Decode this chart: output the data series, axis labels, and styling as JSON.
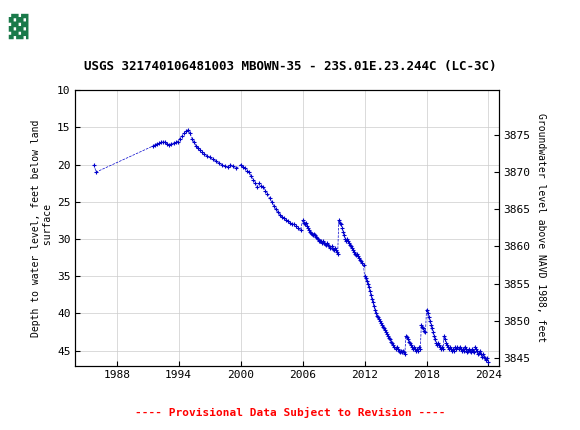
{
  "title": "USGS 321740106481003 MBOWN-35 - 23S.01E.23.244C (LC-3C)",
  "ylabel_left": "Depth to water level, feet below land\n surface",
  "ylabel_right": "Groundwater level above NAVD 1988, feet",
  "provisional_text": "---- Provisional Data Subject to Revision ----",
  "ylim_left": [
    47,
    10
  ],
  "ylim_right": [
    3845,
    3878
  ],
  "xlim": [
    1984,
    2025
  ],
  "yticks_left": [
    10,
    15,
    20,
    25,
    30,
    35,
    40,
    45
  ],
  "yticks_right": [
    3845,
    3850,
    3855,
    3860,
    3865,
    3870,
    3875
  ],
  "xticks": [
    1988,
    1994,
    2000,
    2006,
    2012,
    2018,
    2024
  ],
  "data_color": "#0000CC",
  "grid_color": "#CCCCCC",
  "header_color": "#1a7a4a",
  "provisional_color": "#FF0000",
  "background_color": "#ffffff",
  "land_surface_elevation": 3891.0,
  "data_points": [
    [
      1985.8,
      20.0
    ],
    [
      1986.0,
      21.0
    ],
    [
      1991.5,
      17.5
    ],
    [
      1991.7,
      17.3
    ],
    [
      1991.9,
      17.2
    ],
    [
      1992.1,
      17.1
    ],
    [
      1992.3,
      17.0
    ],
    [
      1992.5,
      16.9
    ],
    [
      1992.7,
      17.0
    ],
    [
      1992.9,
      17.2
    ],
    [
      1993.1,
      17.3
    ],
    [
      1993.3,
      17.2
    ],
    [
      1993.5,
      17.1
    ],
    [
      1993.7,
      17.0
    ],
    [
      1993.9,
      16.9
    ],
    [
      1994.1,
      16.5
    ],
    [
      1994.3,
      16.2
    ],
    [
      1994.5,
      15.8
    ],
    [
      1994.7,
      15.5
    ],
    [
      1994.9,
      15.3
    ],
    [
      1995.1,
      15.8
    ],
    [
      1995.3,
      16.5
    ],
    [
      1995.5,
      17.0
    ],
    [
      1995.7,
      17.5
    ],
    [
      1995.9,
      17.8
    ],
    [
      1996.1,
      18.0
    ],
    [
      1996.3,
      18.3
    ],
    [
      1996.5,
      18.5
    ],
    [
      1996.7,
      18.8
    ],
    [
      1997.0,
      19.0
    ],
    [
      1997.3,
      19.3
    ],
    [
      1997.6,
      19.5
    ],
    [
      1997.9,
      19.8
    ],
    [
      1998.2,
      20.0
    ],
    [
      1998.5,
      20.2
    ],
    [
      1998.8,
      20.3
    ],
    [
      1999.0,
      20.0
    ],
    [
      1999.3,
      20.2
    ],
    [
      1999.6,
      20.5
    ],
    [
      2000.0,
      20.0
    ],
    [
      2000.2,
      20.3
    ],
    [
      2000.4,
      20.5
    ],
    [
      2000.6,
      20.8
    ],
    [
      2000.8,
      21.0
    ],
    [
      2001.0,
      21.5
    ],
    [
      2001.2,
      22.0
    ],
    [
      2001.4,
      22.5
    ],
    [
      2001.6,
      23.0
    ],
    [
      2001.8,
      22.5
    ],
    [
      2002.0,
      22.8
    ],
    [
      2002.2,
      23.0
    ],
    [
      2002.4,
      23.5
    ],
    [
      2002.6,
      24.0
    ],
    [
      2002.8,
      24.5
    ],
    [
      2003.0,
      25.0
    ],
    [
      2003.2,
      25.5
    ],
    [
      2003.4,
      26.0
    ],
    [
      2003.6,
      26.3
    ],
    [
      2003.8,
      26.7
    ],
    [
      2004.0,
      27.0
    ],
    [
      2004.2,
      27.2
    ],
    [
      2004.4,
      27.4
    ],
    [
      2004.6,
      27.6
    ],
    [
      2004.8,
      27.8
    ],
    [
      2005.0,
      28.0
    ],
    [
      2005.2,
      28.0
    ],
    [
      2005.4,
      28.2
    ],
    [
      2005.6,
      28.5
    ],
    [
      2005.8,
      28.8
    ],
    [
      2006.0,
      27.5
    ],
    [
      2006.1,
      27.8
    ],
    [
      2006.2,
      28.0
    ],
    [
      2006.3,
      27.8
    ],
    [
      2006.4,
      28.2
    ],
    [
      2006.5,
      28.5
    ],
    [
      2006.6,
      28.8
    ],
    [
      2006.7,
      29.0
    ],
    [
      2006.8,
      29.2
    ],
    [
      2006.9,
      29.3
    ],
    [
      2007.0,
      29.5
    ],
    [
      2007.1,
      29.3
    ],
    [
      2007.2,
      29.5
    ],
    [
      2007.3,
      29.7
    ],
    [
      2007.4,
      29.8
    ],
    [
      2007.5,
      30.0
    ],
    [
      2007.6,
      30.2
    ],
    [
      2007.7,
      30.3
    ],
    [
      2007.8,
      30.2
    ],
    [
      2007.9,
      30.5
    ],
    [
      2008.0,
      30.3
    ],
    [
      2008.1,
      30.5
    ],
    [
      2008.2,
      30.7
    ],
    [
      2008.3,
      30.8
    ],
    [
      2008.4,
      30.5
    ],
    [
      2008.5,
      30.8
    ],
    [
      2008.6,
      31.0
    ],
    [
      2008.7,
      31.2
    ],
    [
      2008.8,
      31.0
    ],
    [
      2008.9,
      31.3
    ],
    [
      2009.0,
      31.5
    ],
    [
      2009.1,
      31.2
    ],
    [
      2009.2,
      31.5
    ],
    [
      2009.3,
      31.8
    ],
    [
      2009.4,
      32.0
    ],
    [
      2009.5,
      27.5
    ],
    [
      2009.6,
      27.8
    ],
    [
      2009.7,
      28.0
    ],
    [
      2009.8,
      28.5
    ],
    [
      2009.9,
      29.0
    ],
    [
      2010.0,
      29.5
    ],
    [
      2010.1,
      30.0
    ],
    [
      2010.2,
      30.2
    ],
    [
      2010.3,
      30.0
    ],
    [
      2010.4,
      30.3
    ],
    [
      2010.5,
      30.5
    ],
    [
      2010.6,
      30.8
    ],
    [
      2010.7,
      31.0
    ],
    [
      2010.8,
      31.2
    ],
    [
      2010.9,
      31.5
    ],
    [
      2011.0,
      31.8
    ],
    [
      2011.1,
      32.0
    ],
    [
      2011.2,
      32.2
    ],
    [
      2011.3,
      32.0
    ],
    [
      2011.4,
      32.3
    ],
    [
      2011.5,
      32.5
    ],
    [
      2011.6,
      32.8
    ],
    [
      2011.7,
      33.0
    ],
    [
      2011.8,
      33.2
    ],
    [
      2011.9,
      33.5
    ],
    [
      2012.0,
      35.0
    ],
    [
      2012.1,
      35.3
    ],
    [
      2012.2,
      35.7
    ],
    [
      2012.3,
      36.0
    ],
    [
      2012.4,
      36.5
    ],
    [
      2012.5,
      37.0
    ],
    [
      2012.6,
      37.5
    ],
    [
      2012.7,
      38.0
    ],
    [
      2012.8,
      38.5
    ],
    [
      2012.9,
      39.0
    ],
    [
      2013.0,
      39.5
    ],
    [
      2013.1,
      40.0
    ],
    [
      2013.2,
      40.3
    ],
    [
      2013.3,
      40.5
    ],
    [
      2013.4,
      40.8
    ],
    [
      2013.5,
      41.0
    ],
    [
      2013.6,
      41.3
    ],
    [
      2013.7,
      41.5
    ],
    [
      2013.8,
      41.8
    ],
    [
      2013.9,
      42.0
    ],
    [
      2014.0,
      42.2
    ],
    [
      2014.1,
      42.5
    ],
    [
      2014.2,
      42.8
    ],
    [
      2014.3,
      43.0
    ],
    [
      2014.4,
      43.3
    ],
    [
      2014.5,
      43.5
    ],
    [
      2014.6,
      43.8
    ],
    [
      2014.7,
      44.0
    ],
    [
      2014.8,
      44.2
    ],
    [
      2014.9,
      44.5
    ],
    [
      2015.0,
      44.8
    ],
    [
      2015.1,
      44.5
    ],
    [
      2015.2,
      44.8
    ],
    [
      2015.3,
      45.0
    ],
    [
      2015.4,
      45.2
    ],
    [
      2015.5,
      45.0
    ],
    [
      2015.6,
      45.2
    ],
    [
      2015.7,
      45.0
    ],
    [
      2015.8,
      45.2
    ],
    [
      2015.9,
      45.5
    ],
    [
      2016.0,
      43.0
    ],
    [
      2016.1,
      43.2
    ],
    [
      2016.2,
      43.5
    ],
    [
      2016.3,
      43.8
    ],
    [
      2016.4,
      44.0
    ],
    [
      2016.5,
      44.2
    ],
    [
      2016.6,
      44.5
    ],
    [
      2016.7,
      44.8
    ],
    [
      2016.8,
      44.5
    ],
    [
      2016.9,
      44.8
    ],
    [
      2017.0,
      45.0
    ],
    [
      2017.1,
      44.8
    ],
    [
      2017.2,
      45.0
    ],
    [
      2017.3,
      44.5
    ],
    [
      2017.4,
      44.8
    ],
    [
      2017.5,
      41.5
    ],
    [
      2017.6,
      41.8
    ],
    [
      2017.7,
      42.0
    ],
    [
      2017.8,
      42.3
    ],
    [
      2017.9,
      42.5
    ],
    [
      2018.0,
      39.5
    ],
    [
      2018.1,
      40.0
    ],
    [
      2018.2,
      40.5
    ],
    [
      2018.3,
      41.0
    ],
    [
      2018.4,
      41.5
    ],
    [
      2018.5,
      42.0
    ],
    [
      2018.6,
      42.5
    ],
    [
      2018.7,
      43.0
    ],
    [
      2018.8,
      43.5
    ],
    [
      2018.9,
      44.0
    ],
    [
      2019.0,
      44.2
    ],
    [
      2019.1,
      44.0
    ],
    [
      2019.2,
      44.3
    ],
    [
      2019.3,
      44.5
    ],
    [
      2019.4,
      44.8
    ],
    [
      2019.5,
      44.5
    ],
    [
      2019.6,
      44.8
    ],
    [
      2019.7,
      43.0
    ],
    [
      2019.8,
      43.5
    ],
    [
      2019.9,
      44.0
    ],
    [
      2020.0,
      44.3
    ],
    [
      2020.1,
      44.5
    ],
    [
      2020.2,
      44.8
    ],
    [
      2020.3,
      44.5
    ],
    [
      2020.4,
      44.8
    ],
    [
      2020.5,
      45.0
    ],
    [
      2020.6,
      44.8
    ],
    [
      2020.7,
      45.0
    ],
    [
      2020.8,
      44.5
    ],
    [
      2020.9,
      44.8
    ],
    [
      2021.0,
      44.5
    ],
    [
      2021.1,
      44.8
    ],
    [
      2021.2,
      44.5
    ],
    [
      2021.3,
      44.8
    ],
    [
      2021.4,
      45.0
    ],
    [
      2021.5,
      44.8
    ],
    [
      2021.6,
      45.0
    ],
    [
      2021.7,
      44.5
    ],
    [
      2021.8,
      44.8
    ],
    [
      2021.9,
      45.2
    ],
    [
      2022.0,
      45.0
    ],
    [
      2022.1,
      44.8
    ],
    [
      2022.2,
      45.0
    ],
    [
      2022.3,
      45.2
    ],
    [
      2022.4,
      44.8
    ],
    [
      2022.5,
      45.0
    ],
    [
      2022.6,
      45.2
    ],
    [
      2022.7,
      44.5
    ],
    [
      2022.8,
      44.8
    ],
    [
      2022.9,
      45.0
    ],
    [
      2023.0,
      45.5
    ],
    [
      2023.1,
      45.3
    ],
    [
      2023.2,
      45.0
    ],
    [
      2023.3,
      45.5
    ],
    [
      2023.4,
      45.8
    ],
    [
      2023.5,
      45.5
    ],
    [
      2023.6,
      45.8
    ],
    [
      2023.7,
      46.0
    ],
    [
      2023.8,
      46.3
    ],
    [
      2023.9,
      46.0
    ],
    [
      2024.0,
      46.5
    ]
  ]
}
